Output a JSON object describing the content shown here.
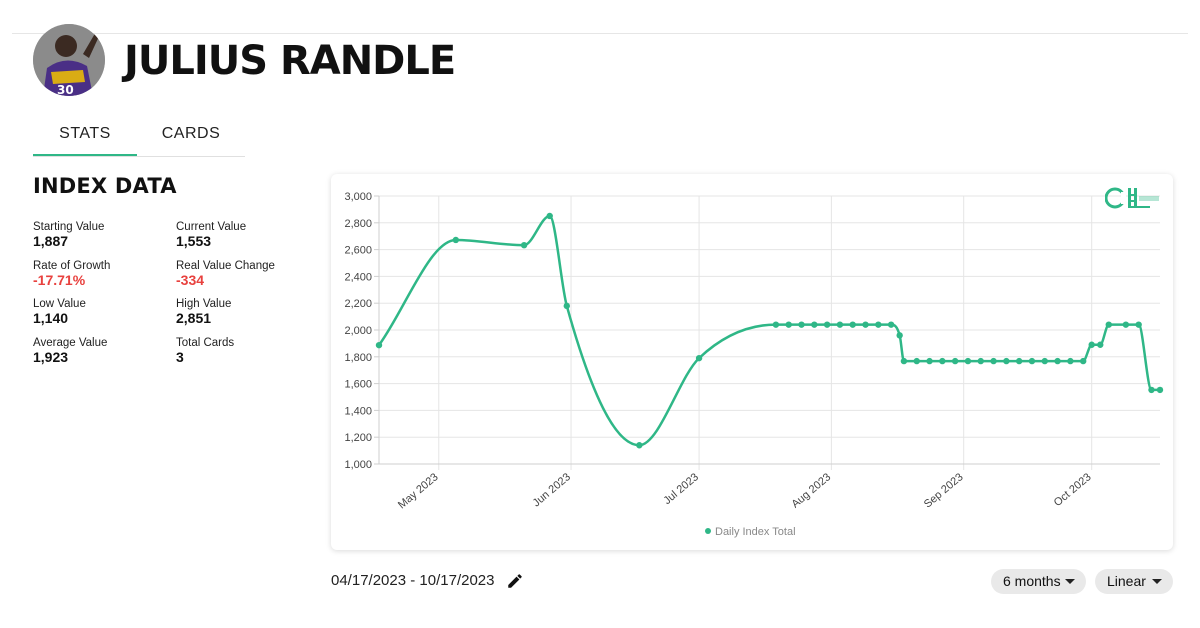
{
  "player": {
    "name": "JULIUS RANDLE"
  },
  "tabs": [
    {
      "label": "STATS",
      "active": true
    },
    {
      "label": "CARDS",
      "active": false
    }
  ],
  "index": {
    "title": "INDEX DATA",
    "stats": {
      "starting_value": {
        "label": "Starting Value",
        "value": "1,887"
      },
      "current_value": {
        "label": "Current Value",
        "value": "1,553"
      },
      "rate_of_growth": {
        "label": "Rate of Growth",
        "value": "-17.71%"
      },
      "real_value_change": {
        "label": "Real Value Change",
        "value": "-334"
      },
      "low_value": {
        "label": "Low Value",
        "value": "1,140"
      },
      "high_value": {
        "label": "High Value",
        "value": "2,851"
      },
      "average_value": {
        "label": "Average Value",
        "value": "1,923"
      },
      "total_cards": {
        "label": "Total Cards",
        "value": "3"
      }
    }
  },
  "colors": {
    "accent": "#2fb787",
    "negative": "#e8413e",
    "grid": "#e5e5e5"
  },
  "footer": {
    "date_range": "04/17/2023 - 10/17/2023",
    "range_select": "6 months",
    "scale_select": "Linear"
  },
  "chart_data": {
    "type": "line",
    "series": [
      {
        "name": "Daily Index Total",
        "points": [
          [
            "2023-04-17",
            1887
          ],
          [
            "2023-05-05",
            2672
          ],
          [
            "2023-05-21",
            2633
          ],
          [
            "2023-05-27",
            2851
          ],
          [
            "2023-05-31",
            2180
          ],
          [
            "2023-06-17",
            1140
          ],
          [
            "2023-07-01",
            1790
          ],
          [
            "2023-07-19",
            2040
          ],
          [
            "2023-07-22",
            2040
          ],
          [
            "2023-07-25",
            2040
          ],
          [
            "2023-07-28",
            2040
          ],
          [
            "2023-07-31",
            2040
          ],
          [
            "2023-08-03",
            2040
          ],
          [
            "2023-08-06",
            2040
          ],
          [
            "2023-08-09",
            2040
          ],
          [
            "2023-08-12",
            2040
          ],
          [
            "2023-08-15",
            2040
          ],
          [
            "2023-08-17",
            1960
          ],
          [
            "2023-08-18",
            1768
          ],
          [
            "2023-08-21",
            1768
          ],
          [
            "2023-08-24",
            1768
          ],
          [
            "2023-08-27",
            1768
          ],
          [
            "2023-08-30",
            1768
          ],
          [
            "2023-09-02",
            1768
          ],
          [
            "2023-09-05",
            1768
          ],
          [
            "2023-09-08",
            1768
          ],
          [
            "2023-09-11",
            1768
          ],
          [
            "2023-09-14",
            1768
          ],
          [
            "2023-09-17",
            1768
          ],
          [
            "2023-09-20",
            1768
          ],
          [
            "2023-09-23",
            1768
          ],
          [
            "2023-09-26",
            1768
          ],
          [
            "2023-09-29",
            1768
          ],
          [
            "2023-10-01",
            1890
          ],
          [
            "2023-10-03",
            1890
          ],
          [
            "2023-10-05",
            2040
          ],
          [
            "2023-10-09",
            2040
          ],
          [
            "2023-10-12",
            2040
          ],
          [
            "2023-10-15",
            1553
          ],
          [
            "2023-10-17",
            1553
          ]
        ]
      }
    ],
    "x_ticks": [
      {
        "date": "2023-05-01",
        "label": "May 2023"
      },
      {
        "date": "2023-06-01",
        "label": "Jun 2023"
      },
      {
        "date": "2023-07-01",
        "label": "Jul 2023"
      },
      {
        "date": "2023-08-01",
        "label": "Aug 2023"
      },
      {
        "date": "2023-09-01",
        "label": "Sep 2023"
      },
      {
        "date": "2023-10-01",
        "label": "Oct 2023"
      }
    ],
    "xlim": [
      "2023-04-17",
      "2023-10-17"
    ],
    "y_ticks": [
      {
        "value": 1000,
        "label": "1,000"
      },
      {
        "value": 1200,
        "label": "1,200"
      },
      {
        "value": 1400,
        "label": "1,400"
      },
      {
        "value": 1600,
        "label": "1,600"
      },
      {
        "value": 1800,
        "label": "1,800"
      },
      {
        "value": 2000,
        "label": "2,000"
      },
      {
        "value": 2200,
        "label": "2,200"
      },
      {
        "value": 2400,
        "label": "2,400"
      },
      {
        "value": 2600,
        "label": "2,600"
      },
      {
        "value": 2800,
        "label": "2,800"
      },
      {
        "value": 3000,
        "label": "3,000"
      }
    ],
    "ylim": [
      1000,
      3000
    ],
    "grid": true,
    "legend_position": "bottom",
    "line_style": "smooth"
  }
}
